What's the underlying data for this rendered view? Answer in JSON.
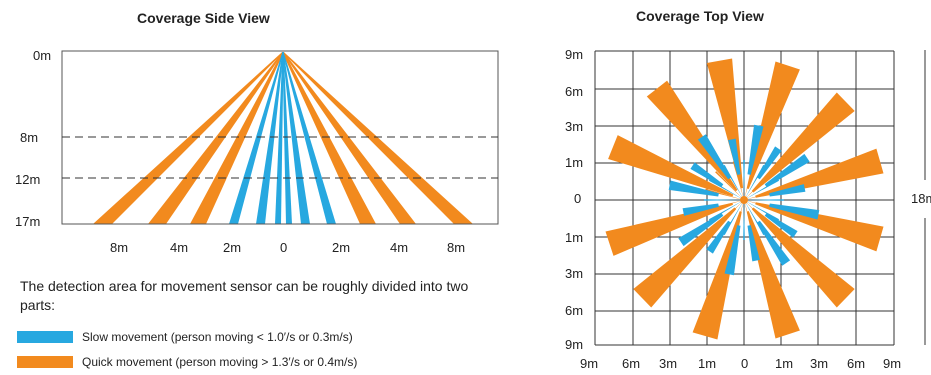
{
  "side_view": {
    "title": "Coverage Side View",
    "y_labels": [
      "0m",
      "8m",
      "12m",
      "17m"
    ],
    "x_labels": [
      "8m",
      "4m",
      "2m",
      "0",
      "2m",
      "4m",
      "8m"
    ],
    "slow_color": "#27a8e0",
    "quick_color": "#f28a1e"
  },
  "top_view": {
    "title": "Coverage Top View",
    "y_labels": [
      "9m",
      "6m",
      "3m",
      "1m",
      "0",
      "1m",
      "3m",
      "6m",
      "9m"
    ],
    "x_labels": [
      "9m",
      "6m",
      "3m",
      "1m",
      "0",
      "1m",
      "3m",
      "6m",
      "9m"
    ],
    "dimension_label": "18m"
  },
  "description": "The detection area for movement sensor can be roughly divided into two parts:",
  "legend": [
    {
      "label": "Slow movement (person moving < 1.0′/s or 0.3m/s)",
      "color": "#27a8e0"
    },
    {
      "label": "Quick movement (person moving > 1.3′/s or 0.4m/s)",
      "color": "#f28a1e"
    }
  ]
}
